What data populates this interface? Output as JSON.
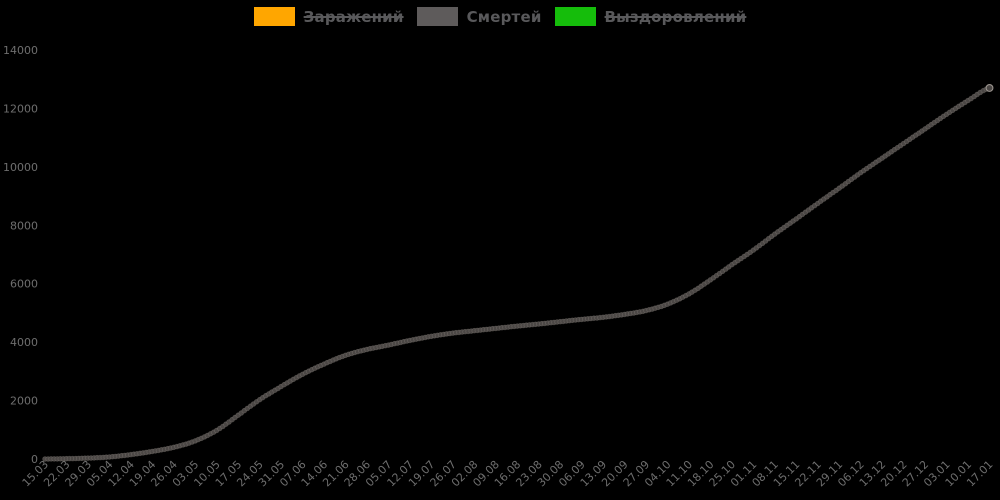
{
  "chart_data": {
    "type": "line",
    "title": "",
    "background": "#000000",
    "grid": false,
    "legend_position": "top",
    "tick_color": "#6e6e6e",
    "legend_text_color": "#59595b",
    "ylim": [
      0,
      14000
    ],
    "yticks": [
      0,
      2000,
      4000,
      6000,
      8000,
      10000,
      12000,
      14000
    ],
    "categories": [
      "15.03",
      "22.03",
      "29.03",
      "05.04",
      "12.04",
      "19.04",
      "26.04",
      "03.05",
      "10.05",
      "17.05",
      "24.05",
      "31.05",
      "07.06",
      "14.06",
      "21.06",
      "28.06",
      "05.07",
      "12.07",
      "19.07",
      "26.07",
      "02.08",
      "09.08",
      "16.08",
      "23.08",
      "30.08",
      "06.09",
      "13.09",
      "20.09",
      "27.09",
      "04.10",
      "11.10",
      "18.10",
      "25.10",
      "01.11",
      "08.11",
      "15.11",
      "22.11",
      "29.11",
      "06.12",
      "13.12",
      "20.12",
      "27.12",
      "03.01",
      "10.01",
      "17.01"
    ],
    "series": [
      {
        "name": "Заражений",
        "swatch_color": "#ffa600",
        "line_color": "#ffa600",
        "hidden": true,
        "values": []
      },
      {
        "name": "Смертей",
        "swatch_color": "#5e5b5b",
        "line_color": "#4b4745",
        "point_edge_color": "rgba(165,158,150,0.28)",
        "end_marker_color": "#9a948e",
        "hidden": false,
        "values": [
          0,
          10,
          30,
          70,
          150,
          260,
          400,
          620,
          980,
          1500,
          2030,
          2480,
          2900,
          3250,
          3550,
          3750,
          3900,
          4060,
          4200,
          4310,
          4390,
          4470,
          4550,
          4620,
          4700,
          4780,
          4850,
          4950,
          5080,
          5300,
          5650,
          6130,
          6650,
          7150,
          7700,
          8220,
          8750,
          9270,
          9800,
          10300,
          10800,
          11300,
          11800,
          12270,
          12700
        ]
      },
      {
        "name": "Выздоровлений",
        "swatch_color": "#15bd0b",
        "line_color": "#15bd0b",
        "hidden": true,
        "values": []
      }
    ]
  }
}
